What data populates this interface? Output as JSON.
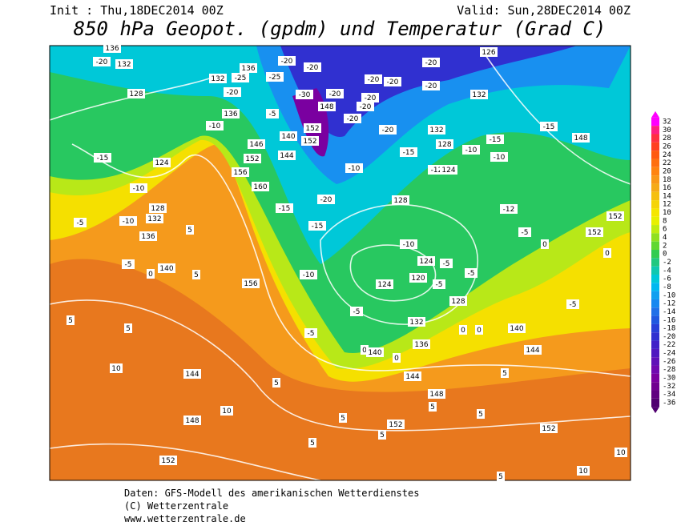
{
  "header": {
    "init": "Init : Thu,18DEC2014 00Z",
    "valid": "Valid: Sun,28DEC2014 00Z",
    "title": "850 hPa Geopot. (gpdm) und Temperatur (Grad C)"
  },
  "colorbar": {
    "levels": [
      32,
      30,
      28,
      26,
      24,
      22,
      20,
      18,
      16,
      14,
      12,
      10,
      8,
      6,
      4,
      2,
      0,
      -2,
      -4,
      -6,
      -8,
      -10,
      -12,
      -14,
      -16,
      -18,
      -20,
      -22,
      -24,
      -26,
      -28,
      -30,
      -32,
      -34,
      -36
    ],
    "colors": [
      "#ff00ff",
      "#ff2080",
      "#ff3040",
      "#ff4020",
      "#ff5a10",
      "#ff7010",
      "#ff8410",
      "#f99818",
      "#f5aa18",
      "#f5bf10",
      "#f5d408",
      "#f5e600",
      "#e8f000",
      "#c0ec10",
      "#90e020",
      "#60d830",
      "#30cc50",
      "#20c880",
      "#10c8b0",
      "#00c8d8",
      "#00b8f0",
      "#10a0f0",
      "#1888f0",
      "#2070e8",
      "#2058e0",
      "#2840d8",
      "#3030d0",
      "#4020c8",
      "#5018c0",
      "#6010b8",
      "#7008b0",
      "#7a00a0",
      "#700090",
      "#600080",
      "#500070"
    ]
  },
  "map_labels": [
    136,
    -20,
    132,
    132,
    -25,
    136,
    -20,
    128,
    136,
    -10,
    -5,
    140,
    152,
    152,
    148,
    -30,
    -20,
    -20,
    -20,
    -25,
    -20,
    -20,
    -20,
    126,
    -20,
    132,
    -20,
    -20,
    -20,
    -20,
    132,
    128,
    -10,
    -15,
    -15,
    148,
    -10,
    -15,
    -12,
    124,
    -15,
    124,
    -10,
    128,
    132,
    -10,
    -5,
    136,
    -5,
    140,
    0,
    5,
    5,
    146,
    152,
    156,
    160,
    144,
    -10,
    -15,
    -20,
    -15,
    128,
    -10,
    -10,
    156,
    5,
    5,
    124,
    120,
    -5,
    124,
    -5,
    -5,
    128,
    -5,
    132,
    -5,
    136,
    0,
    140,
    0,
    0,
    0,
    140,
    -5,
    144,
    144,
    148,
    5,
    5,
    10,
    144,
    148,
    10,
    152,
    5,
    5,
    152,
    5,
    5,
    5,
    152,
    10,
    10,
    5,
    -12,
    -5,
    0,
    152,
    152,
    0
  ],
  "footer": {
    "line1": "Daten: GFS-Modell des amerikanischen Wetterdienstes",
    "line2": "(C) Wetterzentrale",
    "line3": "www.wetterzentrale.de"
  }
}
